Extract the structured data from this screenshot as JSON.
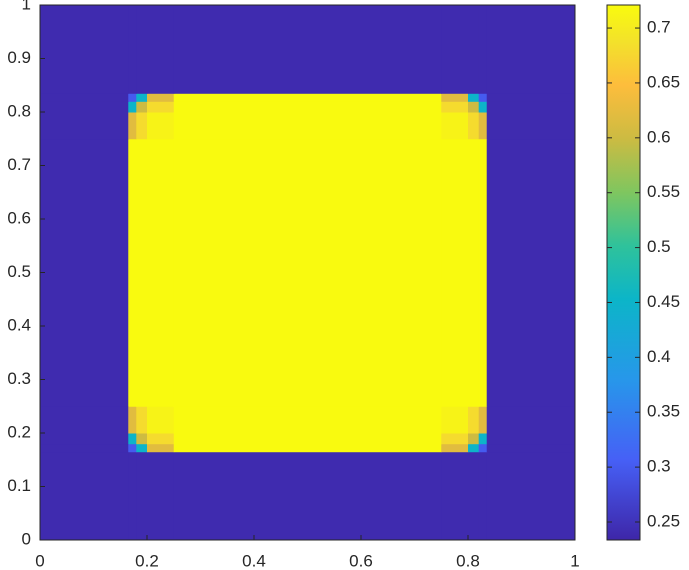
{
  "chart_data": {
    "type": "heatmap",
    "colormap": "parula",
    "x_edges": [
      0,
      0.165,
      0.18,
      0.2,
      0.25,
      0.75,
      0.8,
      0.82,
      0.835,
      1
    ],
    "y_edges": [
      0,
      0.165,
      0.18,
      0.2,
      0.25,
      0.75,
      0.8,
      0.82,
      0.835,
      1
    ],
    "z": [
      [
        0.24,
        0.24,
        0.24,
        0.24,
        0.24,
        0.24,
        0.24,
        0.24,
        0.24
      ],
      [
        0.24,
        0.3,
        0.45,
        0.62,
        0.72,
        0.62,
        0.45,
        0.3,
        0.24
      ],
      [
        0.24,
        0.45,
        0.6,
        0.68,
        0.72,
        0.68,
        0.6,
        0.45,
        0.24
      ],
      [
        0.24,
        0.62,
        0.68,
        0.71,
        0.72,
        0.71,
        0.68,
        0.62,
        0.24
      ],
      [
        0.24,
        0.72,
        0.72,
        0.72,
        0.72,
        0.72,
        0.72,
        0.72,
        0.24
      ],
      [
        0.24,
        0.62,
        0.68,
        0.71,
        0.72,
        0.71,
        0.68,
        0.62,
        0.24
      ],
      [
        0.24,
        0.45,
        0.6,
        0.68,
        0.72,
        0.68,
        0.6,
        0.45,
        0.24
      ],
      [
        0.24,
        0.3,
        0.45,
        0.62,
        0.72,
        0.62,
        0.45,
        0.3,
        0.24
      ],
      [
        0.24,
        0.24,
        0.24,
        0.24,
        0.24,
        0.24,
        0.24,
        0.24,
        0.24
      ]
    ],
    "xlim": [
      0,
      1
    ],
    "xticks": [
      0,
      0.2,
      0.4,
      0.6,
      0.8,
      1
    ],
    "ylim": [
      0,
      1
    ],
    "yticks": [
      0,
      0.1,
      0.2,
      0.3,
      0.4,
      0.5,
      0.6,
      0.7,
      0.8,
      0.9,
      1
    ],
    "clim": [
      0.2336,
      0.721
    ],
    "cticks": [
      0.25,
      0.3,
      0.35,
      0.4,
      0.45,
      0.5,
      0.55,
      0.6,
      0.65,
      0.7
    ]
  }
}
